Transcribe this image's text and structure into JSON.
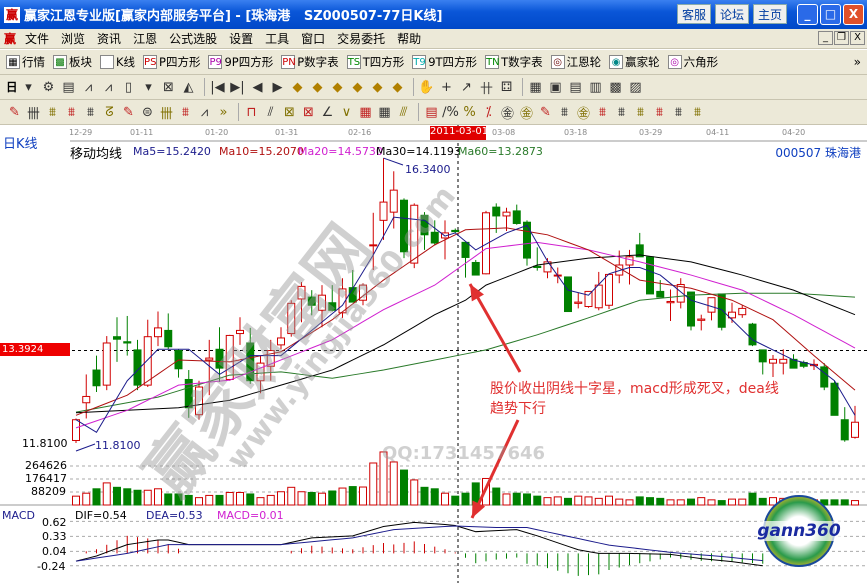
{
  "window": {
    "title": "赢家江恩专业版[赢家内部服务平台] - [珠海港   SZ000507-77日K线]",
    "app_icon": "赢",
    "links": [
      "客服",
      "论坛",
      "主页"
    ]
  },
  "menu": {
    "logo": "赢",
    "items": [
      "文件",
      "浏览",
      "资讯",
      "江恩",
      "公式选股",
      "设置",
      "工具",
      "窗口",
      "交易委托",
      "帮助"
    ]
  },
  "toolbar1": [
    {
      "icon": "grid-icon",
      "glyph": "▦",
      "label": "行情"
    },
    {
      "icon": "blocks-icon",
      "glyph": "▩",
      "label": "板块"
    },
    {
      "icon": "kline-icon",
      "glyph": "ılı",
      "label": "K线"
    },
    {
      "icon": "ps-icon",
      "glyph": "PS",
      "label": "P四方形"
    },
    {
      "icon": "p9-icon",
      "glyph": "P9",
      "label": "9P四方形"
    },
    {
      "icon": "pn-icon",
      "glyph": "PN",
      "label": "P数字表"
    },
    {
      "icon": "ts-icon",
      "glyph": "TS",
      "label": "T四方形"
    },
    {
      "icon": "t9-icon",
      "glyph": "T9",
      "label": "9T四方形"
    },
    {
      "icon": "tn-icon",
      "glyph": "TN",
      "label": "T数字表"
    },
    {
      "icon": "gann-wheel-icon",
      "glyph": "◎",
      "label": "江恩轮"
    },
    {
      "icon": "yingjia-wheel-icon",
      "glyph": "◉",
      "label": "赢家轮"
    },
    {
      "icon": "hexagon-icon",
      "glyph": "◎",
      "label": "六角形"
    }
  ],
  "toolbar1_more": "»",
  "toolbar2": {
    "period": "日",
    "icons": [
      "▾",
      "⚙",
      "▤",
      "⩘",
      "⩘",
      "▯",
      "▾",
      "⊠",
      "◭",
      "|◀",
      "▶|",
      "◀",
      "▶",
      "◆",
      "◆",
      "◆",
      "◆",
      "◆",
      "◆",
      "✋",
      "+",
      "↗",
      "卄",
      "⚃",
      "▦",
      "▣",
      "▤",
      "▥",
      "▩",
      "▨"
    ]
  },
  "toolbar3": {
    "icons": [
      "✎",
      "卌",
      "⩩",
      "⩩",
      "⩩",
      "ᘔ",
      "✎",
      "⊜",
      "卌",
      "⩩",
      "⩘",
      "»",
      "⊓",
      "⫽",
      "⊠",
      "⊠",
      "∠",
      "∨",
      "▦",
      "▦",
      "⫻",
      "▤",
      "∕%",
      "%",
      "⁒",
      "㊎",
      "㊎",
      "✎",
      "⩩",
      "㊎",
      "⩩",
      "⩩",
      "⩩",
      "⩩",
      "⩩",
      "⩩"
    ]
  },
  "chart": {
    "period_label": "日K线",
    "indicator_label": "移动均线",
    "ma_labels": [
      "Ma5=15.2420",
      "Ma10=15.2070",
      "Ma20=14.5730",
      "Ma30=14.1193",
      "Ma60=13.2873"
    ],
    "stock_label": "000507 珠海港",
    "dates": [
      "12-29",
      "01-11",
      "01-20",
      "01-31",
      "02-16",
      "03-08",
      "03-18",
      "03-29",
      "04-11",
      "04-20"
    ],
    "cursor_date": "2011-03-01",
    "cursor_price": "13.3924",
    "high_label": "16.3400",
    "low_label": "11.8100",
    "low_axis": "11.8100",
    "volume_axis": [
      "264626",
      "176417",
      "88209"
    ],
    "macd": {
      "name": "MACD",
      "dif": "DIF=0.54",
      "dea": "DEA=0.53",
      "macd": "MACD=0.01",
      "axis": [
        "0.62",
        "0.33",
        "0.04",
        "-0.24"
      ]
    },
    "annotation": [
      "股价收出阴线十字星，macd形成死叉，dea线",
      "趋势下行"
    ],
    "watermarks": [
      "赢家财富网",
      "www.yingjia360.com",
      "QQ:1731457646"
    ],
    "logo_text": "gann360",
    "colors": {
      "up": "#d00000",
      "down": "#008000",
      "ma5": "#1c1c8c",
      "ma10": "#b01010",
      "ma20": "#d020d0",
      "ma30": "#000000",
      "ma60": "#2a7a2a",
      "dif": "#000000",
      "dea": "#1c1c8c",
      "cursor_box": "#e00000",
      "annotation": "#e03030"
    }
  },
  "chart_data": {
    "type": "candlestick",
    "candles_ohlc": [
      [
        11.85,
        12.2,
        11.81,
        12.18
      ],
      [
        12.45,
        12.9,
        12.2,
        12.55
      ],
      [
        12.97,
        13.2,
        12.62,
        12.72
      ],
      [
        12.73,
        13.51,
        12.65,
        13.4
      ],
      [
        13.5,
        13.81,
        13.1,
        13.46
      ],
      [
        13.42,
        13.83,
        13.2,
        13.4
      ],
      [
        13.29,
        13.45,
        12.65,
        12.73
      ],
      [
        12.73,
        13.77,
        12.7,
        13.5
      ],
      [
        13.5,
        13.9,
        13.35,
        13.64
      ],
      [
        13.6,
        13.87,
        13.3,
        13.34
      ],
      [
        13.28,
        13.3,
        12.85,
        12.99
      ],
      [
        12.82,
        12.97,
        12.21,
        12.37
      ],
      [
        12.26,
        12.8,
        12.18,
        12.7
      ],
      [
        13.13,
        13.45,
        12.57,
        13.16
      ],
      [
        13.3,
        13.65,
        12.78,
        13.0
      ],
      [
        12.82,
        13.53,
        12.8,
        13.52
      ],
      [
        13.55,
        13.81,
        13.37,
        13.6
      ],
      [
        13.4,
        13.64,
        12.75,
        12.8
      ],
      [
        12.8,
        13.2,
        12.6,
        13.08
      ],
      [
        13.03,
        13.45,
        12.8,
        13.28
      ],
      [
        13.37,
        13.65,
        13.3,
        13.48
      ],
      [
        13.55,
        14.08,
        13.5,
        14.03
      ],
      [
        14.1,
        14.37,
        13.73,
        14.3
      ],
      [
        14.13,
        14.24,
        13.84,
        14.0
      ],
      [
        13.92,
        14.32,
        13.65,
        14.16
      ],
      [
        14.04,
        14.32,
        13.9,
        13.92
      ],
      [
        13.88,
        14.43,
        13.8,
        14.26
      ],
      [
        14.28,
        14.56,
        14.05,
        14.05
      ],
      [
        14.08,
        14.35,
        14.0,
        14.32
      ],
      [
        14.95,
        15.47,
        14.56,
        14.96
      ],
      [
        15.35,
        16.34,
        15.04,
        15.64
      ],
      [
        15.48,
        16.13,
        15.22,
        15.83
      ],
      [
        15.67,
        15.7,
        14.75,
        14.85
      ],
      [
        14.67,
        15.62,
        14.59,
        15.59
      ],
      [
        15.43,
        15.48,
        14.88,
        15.12
      ],
      [
        15.16,
        15.35,
        14.95,
        14.99
      ],
      [
        15.07,
        15.35,
        14.73,
        15.15
      ],
      [
        15.19,
        15.22,
        15.15,
        15.17
      ],
      [
        15.0,
        15.0,
        14.44,
        14.76
      ],
      [
        14.68,
        14.72,
        14.48,
        14.48
      ],
      [
        14.5,
        15.5,
        14.49,
        15.47
      ],
      [
        15.56,
        15.62,
        15.15,
        15.42
      ],
      [
        15.42,
        15.55,
        15.18,
        15.48
      ],
      [
        15.5,
        15.6,
        15.28,
        15.3
      ],
      [
        15.32,
        15.35,
        14.63,
        14.75
      ],
      [
        14.62,
        14.92,
        14.55,
        14.6
      ],
      [
        14.53,
        14.75,
        14.43,
        14.69
      ],
      [
        14.47,
        14.6,
        14.35,
        14.48
      ],
      [
        14.45,
        14.45,
        13.9,
        13.9
      ],
      [
        14.03,
        14.2,
        13.95,
        14.05
      ],
      [
        13.98,
        14.22,
        13.96,
        14.22
      ],
      [
        13.96,
        14.53,
        13.92,
        14.32
      ],
      [
        14.0,
        14.49,
        13.94,
        14.49
      ],
      [
        14.48,
        14.87,
        14.35,
        14.64
      ],
      [
        14.64,
        14.88,
        14.33,
        14.77
      ],
      [
        14.96,
        15.15,
        14.77,
        14.77
      ],
      [
        14.77,
        14.78,
        14.18,
        14.18
      ],
      [
        14.22,
        14.4,
        14.13,
        14.13
      ],
      [
        14.04,
        14.25,
        13.75,
        14.06
      ],
      [
        14.05,
        14.43,
        13.95,
        14.33
      ],
      [
        14.21,
        14.21,
        13.6,
        13.67
      ],
      [
        13.76,
        13.85,
        13.6,
        13.78
      ],
      [
        13.89,
        14.12,
        13.76,
        14.12
      ],
      [
        14.18,
        14.18,
        13.6,
        13.65
      ],
      [
        13.8,
        14.04,
        13.72,
        13.89
      ],
      [
        13.85,
        14.0,
        13.8,
        13.95
      ],
      [
        13.7,
        13.72,
        13.35,
        13.37
      ],
      [
        13.29,
        13.29,
        12.9,
        13.1
      ],
      [
        13.08,
        13.21,
        12.86,
        13.14
      ],
      [
        13.08,
        13.3,
        12.9,
        13.14
      ],
      [
        13.14,
        13.22,
        13.0,
        13.0
      ],
      [
        13.09,
        13.12,
        13.0,
        13.03
      ],
      [
        13.04,
        13.14,
        12.97,
        13.06
      ],
      [
        13.02,
        13.08,
        12.65,
        12.7
      ],
      [
        12.76,
        12.8,
        12.25,
        12.25
      ],
      [
        12.18,
        12.38,
        11.83,
        11.86
      ],
      [
        11.9,
        12.4,
        11.88,
        12.14
      ]
    ],
    "volume": [
      60000,
      80000,
      110000,
      150000,
      120000,
      110000,
      100000,
      100000,
      110000,
      75000,
      75000,
      65000,
      50000,
      65000,
      65000,
      85000,
      85000,
      75000,
      50000,
      65000,
      90000,
      120000,
      90000,
      85000,
      80000,
      95000,
      115000,
      125000,
      122000,
      285000,
      360000,
      292000,
      237000,
      170000,
      120000,
      110000,
      80000,
      60000,
      80000,
      150000,
      180000,
      115000,
      75000,
      80000,
      75000,
      60000,
      50000,
      55000,
      45000,
      60000,
      55000,
      45000,
      60000,
      40000,
      35000,
      55000,
      50000,
      45000,
      35000,
      35000,
      40000,
      50000,
      35000,
      30000,
      40000,
      40000,
      80000,
      45000,
      50000,
      45000,
      45000,
      35000,
      35000,
      35000,
      35000,
      35000,
      30000
    ],
    "ma": {
      "ma5": [
        [
          0,
          12.18
        ],
        [
          2,
          11.98
        ],
        [
          5,
          12.8
        ],
        [
          8,
          13.3
        ],
        [
          11,
          13.3
        ],
        [
          14,
          12.9
        ],
        [
          17,
          13.2
        ],
        [
          20,
          13.2
        ],
        [
          23,
          13.6
        ],
        [
          26,
          14.0
        ],
        [
          29,
          14.8
        ],
        [
          31,
          15.4
        ],
        [
          34,
          15.35
        ],
        [
          36,
          15.1
        ],
        [
          37,
          15.15
        ],
        [
          39,
          14.88
        ],
        [
          42,
          15.15
        ],
        [
          44,
          15.27
        ],
        [
          46,
          14.7
        ],
        [
          48,
          14.24
        ],
        [
          50,
          14.16
        ],
        [
          52,
          14.5
        ],
        [
          54,
          14.6
        ],
        [
          55,
          14.6
        ],
        [
          57,
          14.48
        ],
        [
          60,
          14.08
        ],
        [
          63,
          13.93
        ],
        [
          66,
          13.45
        ],
        [
          68,
          13.29
        ],
        [
          70,
          13.13
        ],
        [
          72,
          13.05
        ],
        [
          74,
          12.8
        ],
        [
          76,
          12.25
        ]
      ],
      "ma10": [
        [
          0,
          12.25
        ],
        [
          5,
          12.57
        ],
        [
          10,
          13.13
        ],
        [
          15,
          13.1
        ],
        [
          20,
          13.26
        ],
        [
          25,
          13.77
        ],
        [
          30,
          14.4
        ],
        [
          35,
          14.96
        ],
        [
          38,
          15.2
        ],
        [
          42,
          15.23
        ],
        [
          46,
          15.12
        ],
        [
          50,
          14.88
        ],
        [
          55,
          14.4
        ],
        [
          60,
          14.27
        ],
        [
          64,
          14.08
        ],
        [
          68,
          13.77
        ],
        [
          72,
          13.2
        ],
        [
          76,
          12.65
        ]
      ],
      "ma20": [
        [
          0,
          12.05
        ],
        [
          5,
          12.33
        ],
        [
          10,
          12.73
        ],
        [
          15,
          12.81
        ],
        [
          20,
          13.13
        ],
        [
          25,
          13.45
        ],
        [
          30,
          13.93
        ],
        [
          35,
          14.32
        ],
        [
          40,
          14.9
        ],
        [
          45,
          15.0
        ],
        [
          50,
          14.88
        ],
        [
          55,
          14.69
        ],
        [
          60,
          14.48
        ],
        [
          65,
          14.24
        ],
        [
          70,
          13.85
        ],
        [
          76,
          13.32
        ]
      ],
      "ma30": [
        [
          0,
          12.29
        ],
        [
          10,
          12.37
        ],
        [
          15,
          12.49
        ],
        [
          20,
          12.73
        ],
        [
          25,
          12.97
        ],
        [
          30,
          13.37
        ],
        [
          35,
          13.85
        ],
        [
          38,
          14.08
        ],
        [
          40,
          14.32
        ],
        [
          45,
          14.64
        ],
        [
          50,
          14.75
        ],
        [
          55,
          14.8
        ],
        [
          60,
          14.69
        ],
        [
          65,
          14.48
        ],
        [
          70,
          14.24
        ],
        [
          76,
          13.85
        ]
      ],
      "ma60": [
        [
          0,
          12.3
        ],
        [
          8,
          12.54
        ],
        [
          15,
          12.89
        ],
        [
          20,
          12.94
        ],
        [
          25,
          12.84
        ],
        [
          30,
          12.97
        ],
        [
          35,
          13.13
        ],
        [
          40,
          13.29
        ],
        [
          45,
          13.53
        ],
        [
          50,
          13.8
        ],
        [
          55,
          14.08
        ],
        [
          60,
          14.16
        ],
        [
          65,
          14.19
        ],
        [
          70,
          14.19
        ],
        [
          76,
          14.13
        ]
      ]
    },
    "dif": [
      [
        0,
        -0.15
      ],
      [
        2,
        -0.05
      ],
      [
        5,
        0.17
      ],
      [
        8,
        0.26
      ],
      [
        9,
        0.26
      ],
      [
        11,
        0.17
      ],
      [
        15,
        0.17
      ],
      [
        20,
        0.17
      ],
      [
        23,
        0.3
      ],
      [
        27,
        0.34
      ],
      [
        30,
        0.52
      ],
      [
        33,
        0.6
      ],
      [
        36,
        0.56
      ],
      [
        37,
        0.54
      ],
      [
        39,
        0.42
      ],
      [
        41,
        0.44
      ],
      [
        43,
        0.46
      ],
      [
        45,
        0.34
      ],
      [
        49,
        0.07
      ],
      [
        51,
        0.0
      ],
      [
        54,
        0.0
      ],
      [
        58,
        -0.02
      ],
      [
        61,
        -0.1
      ],
      [
        64,
        -0.16
      ],
      [
        67,
        -0.24
      ]
    ],
    "dea": [
      [
        0,
        -0.15
      ],
      [
        5,
        0.0
      ],
      [
        9,
        0.17
      ],
      [
        15,
        0.17
      ],
      [
        20,
        0.17
      ],
      [
        27,
        0.3
      ],
      [
        31,
        0.46
      ],
      [
        36,
        0.52
      ],
      [
        37,
        0.53
      ],
      [
        41,
        0.5
      ],
      [
        44,
        0.5
      ],
      [
        52,
        0.16
      ],
      [
        58,
        0.02
      ],
      [
        63,
        -0.06
      ],
      [
        67,
        -0.14
      ]
    ],
    "price_range": [
      11.81,
      16.34
    ],
    "macd_range": [
      -0.24,
      0.62
    ]
  }
}
